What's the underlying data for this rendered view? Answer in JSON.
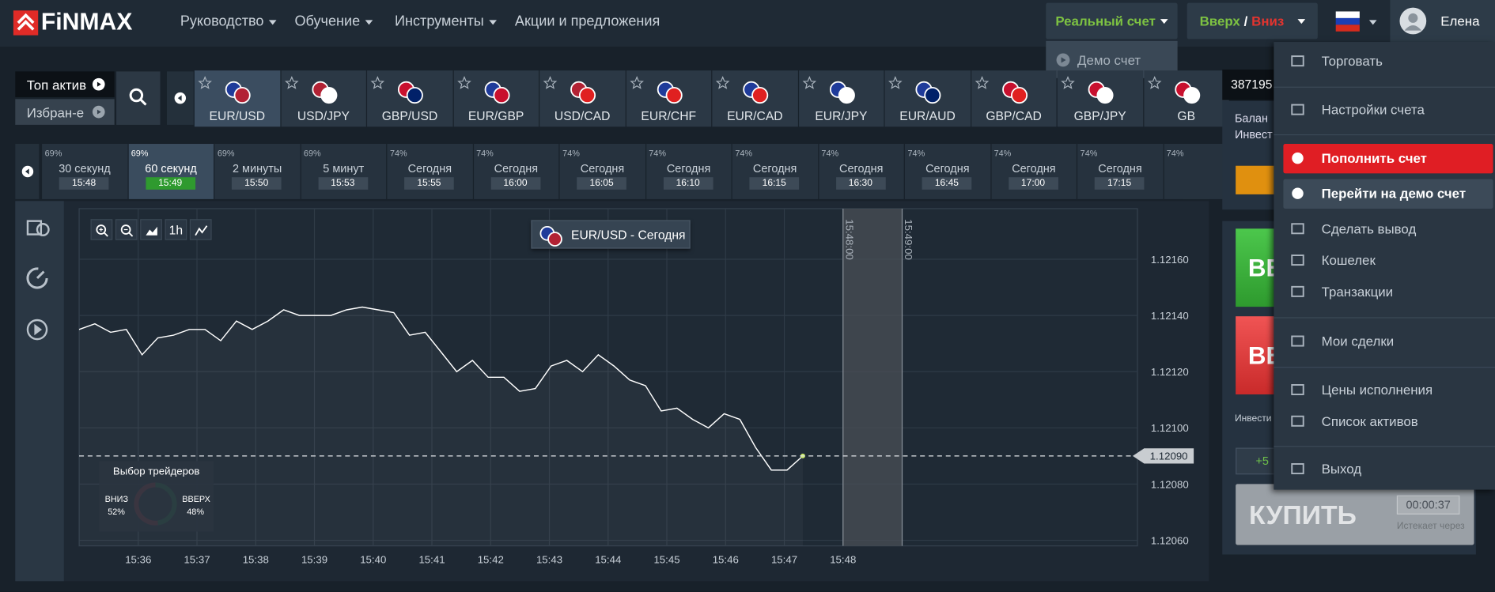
{
  "brand": "FiNMAX",
  "nav": [
    "Руководство",
    "Обучение",
    "Инструменты",
    "Акции и предложения"
  ],
  "account": {
    "real": "Реальный счет",
    "demo": "Демо счет"
  },
  "mode": {
    "up": "Вверх",
    "sep": "/",
    "down": "Вниз"
  },
  "user": "Елена",
  "asset_tabs": {
    "top": "Топ актив",
    "fav": "Избран-е"
  },
  "assets": [
    "EUR/USD",
    "USD/JPY",
    "GBP/USD",
    "EUR/GBP",
    "USD/CAD",
    "EUR/CHF",
    "EUR/CAD",
    "EUR/JPY",
    "EUR/AUD",
    "GBP/CAD",
    "GBP/JPY",
    "GB"
  ],
  "expiries": [
    {
      "pct": "69%",
      "label": "30 секунд",
      "time": "15:48"
    },
    {
      "pct": "69%",
      "label": "60 секунд",
      "time": "15:49"
    },
    {
      "pct": "69%",
      "label": "2 минуты",
      "time": "15:50"
    },
    {
      "pct": "69%",
      "label": "5 минут",
      "time": "15:53"
    },
    {
      "pct": "74%",
      "label": "Сегодня",
      "time": "15:55"
    },
    {
      "pct": "74%",
      "label": "Сегодня",
      "time": "16:00"
    },
    {
      "pct": "74%",
      "label": "Сегодня",
      "time": "16:05"
    },
    {
      "pct": "74%",
      "label": "Сегодня",
      "time": "16:10"
    },
    {
      "pct": "74%",
      "label": "Сегодня",
      "time": "16:15"
    },
    {
      "pct": "74%",
      "label": "Сегодня",
      "time": "16:30"
    },
    {
      "pct": "74%",
      "label": "Сегодня",
      "time": "16:45"
    },
    {
      "pct": "74%",
      "label": "Сегодня",
      "time": "17:00"
    },
    {
      "pct": "74%",
      "label": "Сегодня",
      "time": "17:15"
    },
    {
      "pct": "74%"
    }
  ],
  "chart_data": {
    "type": "line",
    "title": "EUR/USD - Сегодня",
    "zoom": "1h",
    "ylim": [
      1.12058,
      1.12178
    ],
    "yticks": [
      {
        "value": 1.1216,
        "label": "1.12160"
      },
      {
        "value": 1.1214,
        "label": "1.12140"
      },
      {
        "value": 1.1212,
        "label": "1.12120"
      },
      {
        "value": 1.121,
        "label": "1.12100"
      },
      {
        "value": 1.1208,
        "label": "1.12080"
      },
      {
        "value": 1.1206,
        "label": "1.12060"
      }
    ],
    "xticks": [
      "15:36",
      "15:37",
      "15:38",
      "15:39",
      "15:40",
      "15:41",
      "15:42",
      "15:43",
      "15:44",
      "15:45",
      "15:46",
      "15:47",
      "15:48"
    ],
    "series": [
      {
        "name": "EUR/USD",
        "color": "#ffffff",
        "values": [
          1.12135,
          1.12137,
          1.12134,
          1.12135,
          1.12126,
          1.12132,
          1.12133,
          1.12135,
          1.12135,
          1.12131,
          1.12138,
          1.12135,
          1.12138,
          1.12142,
          1.1214,
          1.1214,
          1.1214,
          1.12142,
          1.12143,
          1.12142,
          1.12141,
          1.12133,
          1.12134,
          1.12127,
          1.1212,
          1.12124,
          1.12118,
          1.12118,
          1.12113,
          1.12114,
          1.12122,
          1.12124,
          1.1212,
          1.12126,
          1.12122,
          1.12117,
          1.12115,
          1.12106,
          1.12107,
          1.12103,
          1.121,
          1.12105,
          1.12103,
          1.12093,
          1.12085,
          1.12085,
          1.1209
        ]
      }
    ],
    "current": {
      "value": 1.1209,
      "label": "1.12090"
    },
    "expiry_marks": [
      "15:48:00",
      "15:49:00"
    ],
    "traders": {
      "title": "Выбор трейдеров",
      "down": {
        "label": "ВНИЗ",
        "value": 52,
        "value_label": "52%"
      },
      "up": {
        "label": "ВВЕРХ",
        "value": 48,
        "value_label": "48%"
      }
    }
  },
  "side_panel": {
    "account_id": "387195",
    "balance": "Балан",
    "invest": "Инвест",
    "up_btn": "ВВ",
    "down_btn": "ВВ",
    "invest2": "Инвести",
    "plus": "+5",
    "buy": "КУПИТЬ",
    "timer": "00:00:37",
    "expires": "Истекает через"
  },
  "menu": [
    "Торговать",
    "Настройки счета",
    "Пополнить счет",
    "Перейти на демо счет",
    "Сделать вывод",
    "Кошелек",
    "Транзакции",
    "Мои сделки",
    "Цены исполнения",
    "Список активов",
    "Выход"
  ]
}
